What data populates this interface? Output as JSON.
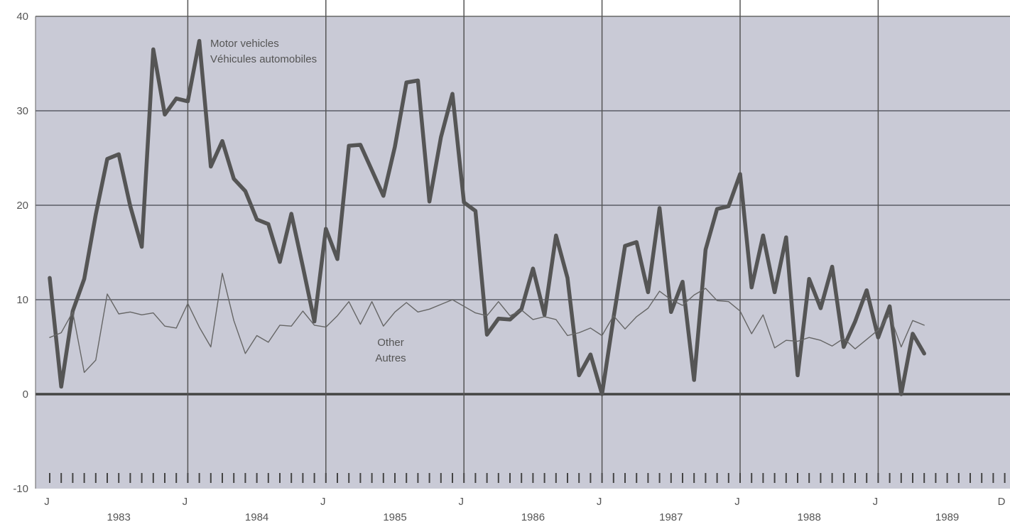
{
  "chart_data": {
    "type": "line",
    "title": "",
    "xlabel": "",
    "ylabel": "",
    "ylim": [
      -10,
      40
    ],
    "yticks": [
      "40",
      "30",
      "20",
      "10",
      "0",
      "-10"
    ],
    "grid": "horizontal",
    "x_month_labels": [
      "J",
      "J",
      "J",
      "J",
      "J",
      "J",
      "J",
      "D"
    ],
    "x_year_labels": [
      "1983",
      "1984",
      "1985",
      "1986",
      "1987",
      "1988",
      "1989"
    ],
    "x_start": "1983-01",
    "series": [
      {
        "name": "Motor vehicles / Véhicules automobiles",
        "label_lines": [
          "Motor vehicles",
          "Véhicules automobiles"
        ],
        "color": "#555555",
        "values": [
          12.3,
          0.8,
          8.8,
          12.2,
          19.0,
          24.9,
          25.4,
          19.9,
          15.6,
          36.5,
          29.6,
          31.3,
          31.0,
          37.4,
          24.1,
          26.8,
          22.8,
          21.5,
          18.5,
          18.0,
          14.0,
          19.1,
          13.5,
          7.7,
          17.5,
          14.3,
          26.3,
          26.4,
          23.7,
          21.0,
          26.2,
          33.0,
          33.2,
          20.4,
          27.2,
          31.8,
          20.3,
          19.4,
          6.3,
          8.0,
          7.9,
          9.0,
          13.3,
          8.4,
          16.8,
          12.3,
          2.0,
          4.2,
          0.0,
          8.1,
          15.7,
          16.1,
          10.8,
          19.7,
          8.7,
          11.9,
          1.5,
          15.3,
          19.6,
          19.9,
          23.3,
          11.3,
          16.8,
          10.8,
          16.6,
          2.0,
          12.2,
          9.1,
          13.5,
          5.0,
          7.7,
          11.0,
          6.0,
          9.3,
          0.0,
          6.4,
          4.3
        ]
      },
      {
        "name": "Other / Autres",
        "label_lines": [
          "Other",
          "Autres"
        ],
        "color": "#666666",
        "values": [
          6.0,
          6.5,
          8.7,
          2.3,
          3.6,
          10.6,
          8.5,
          8.7,
          8.4,
          8.6,
          7.2,
          7.0,
          9.6,
          7.1,
          5.0,
          12.8,
          7.8,
          4.3,
          6.2,
          5.5,
          7.3,
          7.2,
          8.8,
          7.3,
          7.1,
          8.3,
          9.8,
          7.4,
          9.8,
          7.2,
          8.7,
          9.7,
          8.7,
          9.0,
          9.5,
          10.0,
          9.3,
          8.6,
          8.3,
          9.8,
          8.3,
          8.9,
          7.9,
          8.2,
          7.9,
          6.2,
          6.5,
          7.0,
          6.2,
          8.3,
          6.9,
          8.2,
          9.1,
          10.9,
          10.0,
          9.4,
          10.5,
          11.2,
          9.9,
          9.8,
          8.8,
          6.4,
          8.4,
          4.9,
          5.7,
          5.6,
          6.0,
          5.7,
          5.1,
          5.9,
          4.8,
          5.8,
          6.8,
          8.4,
          5.0,
          7.8,
          7.3
        ]
      }
    ]
  }
}
